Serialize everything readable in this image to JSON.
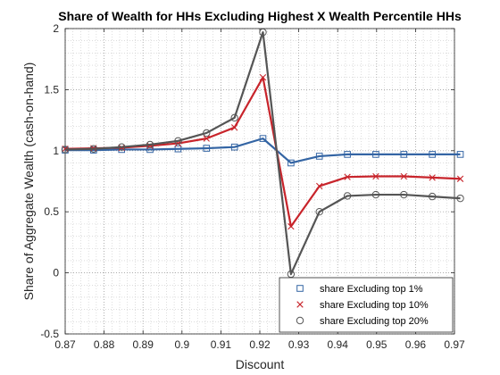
{
  "chart_data": {
    "type": "line",
    "title": "Share of Wealth for HHs Excluding Highest X Wealth Percentile HHs",
    "xlabel": "Discount",
    "ylabel": "Share of Aggregate Wealth (cash-on-hand)",
    "xlim": [
      0.87,
      0.97
    ],
    "ylim": [
      -0.5,
      2
    ],
    "xticks": [
      0.87,
      0.88,
      0.89,
      0.9,
      0.91,
      0.92,
      0.93,
      0.94,
      0.95,
      0.96,
      0.97
    ],
    "xtick_labels": [
      "0.87",
      "0.88",
      "0.89",
      "0.9",
      "0.91",
      "0.92",
      "0.93",
      "0.94",
      "0.95",
      "0.96",
      "0.97"
    ],
    "yticks": [
      -0.5,
      0,
      0.5,
      1,
      1.5,
      2
    ],
    "ytick_labels": [
      "-0.5",
      "0",
      "0.5",
      "1",
      "1.5",
      "2"
    ],
    "grid": "dotted, minor and major",
    "legend_position": "bottom-right",
    "x": [
      0.87,
      0.8773,
      0.8845,
      0.8918,
      0.899,
      0.9063,
      0.9135,
      0.9208,
      0.928,
      0.9353,
      0.9425,
      0.9498,
      0.957,
      0.9643,
      0.9715
    ],
    "series": [
      {
        "name": "share Excluding top 1%",
        "color": "#3465a4",
        "marker": "square",
        "values": [
          1.005,
          1.005,
          1.01,
          1.01,
          1.015,
          1.02,
          1.03,
          1.1,
          0.9,
          0.955,
          0.97,
          0.97,
          0.97,
          0.97,
          0.97
        ]
      },
      {
        "name": "share Excluding top 10%",
        "color": "#c8242b",
        "marker": "x",
        "values": [
          1.015,
          1.02,
          1.025,
          1.04,
          1.06,
          1.1,
          1.19,
          1.6,
          0.38,
          0.71,
          0.785,
          0.79,
          0.79,
          0.78,
          0.77
        ]
      },
      {
        "name": "share Excluding top 20%",
        "color": "#555555",
        "marker": "circle",
        "values": [
          1.01,
          1.015,
          1.03,
          1.05,
          1.08,
          1.145,
          1.27,
          1.97,
          -0.01,
          0.5,
          0.63,
          0.64,
          0.64,
          0.625,
          0.61
        ]
      }
    ]
  }
}
